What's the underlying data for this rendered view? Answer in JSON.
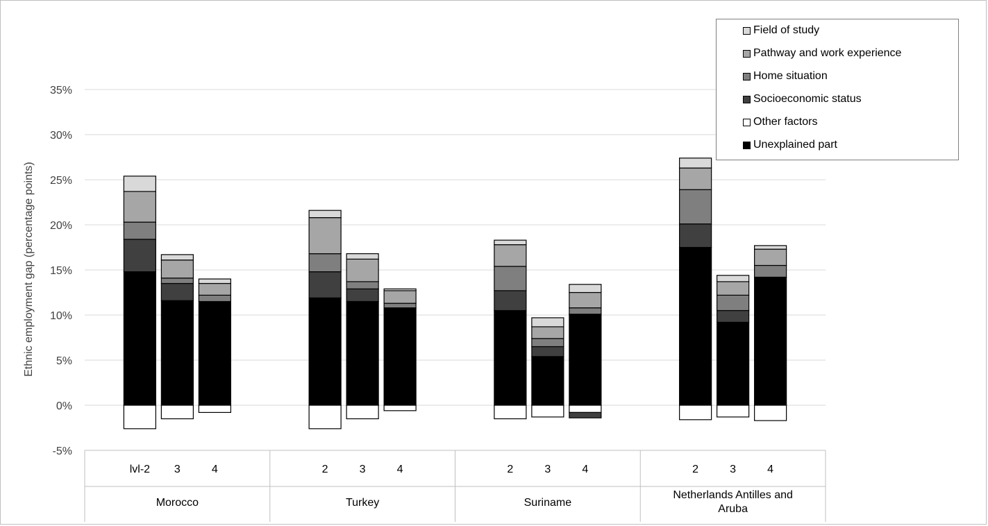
{
  "chart_data": {
    "type": "bar",
    "stacked": true,
    "ylabel": "Ethnic employment gap (percentage points)",
    "xlabel": "",
    "ylim": [
      -5,
      35
    ],
    "yticks": [
      -5,
      0,
      5,
      10,
      15,
      20,
      25,
      30,
      35
    ],
    "ytick_labels": [
      "-5%",
      "0%",
      "5%",
      "10%",
      "15%",
      "20%",
      "25%",
      "30%",
      "35%"
    ],
    "grid": true,
    "legend_position": "top-right",
    "groups": [
      {
        "name": "Morocco",
        "levels": [
          "lvl-2",
          "3",
          "4"
        ]
      },
      {
        "name": "Turkey",
        "levels": [
          "2",
          "3",
          "4"
        ]
      },
      {
        "name": "Suriname",
        "levels": [
          "2",
          "3",
          "4"
        ]
      },
      {
        "name": "Netherlands Antilles and Aruba",
        "levels": [
          "2",
          "3",
          "4"
        ]
      }
    ],
    "series": [
      {
        "name": "Unexplained part",
        "color": "#000000",
        "values": [
          14.8,
          11.6,
          11.5,
          11.9,
          11.5,
          10.8,
          10.5,
          5.4,
          10.1,
          17.5,
          9.2,
          14.2
        ]
      },
      {
        "name": "Other factors",
        "color": "#ffffff",
        "values": [
          -2.6,
          -1.5,
          -0.8,
          -2.6,
          -1.5,
          -0.6,
          -1.5,
          -1.3,
          -0.8,
          -1.6,
          -1.3,
          -1.7
        ]
      },
      {
        "name": "Socioeconomic status",
        "color": "#404040",
        "values": [
          3.6,
          1.9,
          0,
          2.9,
          1.4,
          0,
          2.2,
          1.1,
          -0.6,
          2.6,
          1.3,
          0
        ]
      },
      {
        "name": "Home situation",
        "color": "#7f7f7f",
        "values": [
          1.9,
          0.6,
          0.7,
          2.0,
          0.8,
          0.5,
          2.7,
          0.9,
          0.7,
          3.8,
          1.7,
          1.3
        ]
      },
      {
        "name": "Pathway and work experience",
        "color": "#a6a6a6",
        "values": [
          3.4,
          2.0,
          1.3,
          4.0,
          2.5,
          1.4,
          2.4,
          1.3,
          1.7,
          2.4,
          1.5,
          1.8
        ]
      },
      {
        "name": "Field of study",
        "color": "#d9d9d9",
        "values": [
          1.7,
          0.6,
          0.5,
          0.8,
          0.6,
          0.2,
          0.5,
          1.0,
          0.9,
          1.1,
          0.7,
          0.4
        ]
      }
    ],
    "legend_order": [
      "Field of study",
      "Pathway and work experience",
      "Home situation",
      "Socioeconomic status",
      "Other factors",
      "Unexplained part"
    ]
  }
}
